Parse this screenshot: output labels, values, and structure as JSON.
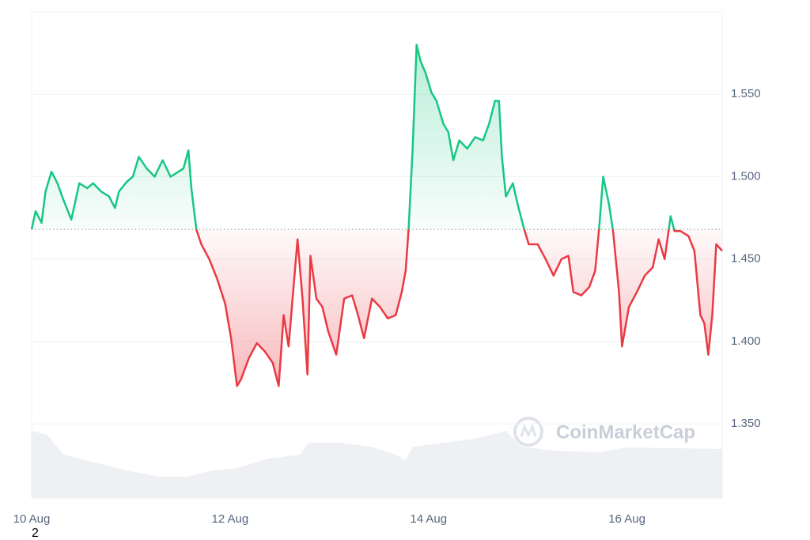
{
  "chart_data": {
    "type": "line",
    "watermark": "CoinMarketCap",
    "footnote": "2",
    "reference_line": 1.468,
    "color_up": "#16c784",
    "color_down": "#ea3943",
    "grid": true,
    "xlim": [
      0,
      6.96
    ],
    "xticks": [
      {
        "value": 0,
        "label": "10 Aug"
      },
      {
        "value": 2,
        "label": "12 Aug"
      },
      {
        "value": 4,
        "label": "14 Aug"
      },
      {
        "value": 6,
        "label": "16 Aug"
      }
    ],
    "ylim": [
      1.305,
      1.6
    ],
    "yticks": [
      {
        "value": 1.35,
        "label": "1.350"
      },
      {
        "value": 1.4,
        "label": "1.400"
      },
      {
        "value": 1.45,
        "label": "1.450"
      },
      {
        "value": 1.5,
        "label": "1.500"
      },
      {
        "value": 1.55,
        "label": "1.550"
      }
    ],
    "x": [
      0,
      0.04,
      0.1,
      0.14,
      0.2,
      0.26,
      0.32,
      0.4,
      0.48,
      0.56,
      0.62,
      0.7,
      0.78,
      0.84,
      0.88,
      0.96,
      1.02,
      1.08,
      1.16,
      1.24,
      1.32,
      1.4,
      1.48,
      1.53,
      1.58,
      1.61,
      1.66,
      1.71,
      1.79,
      1.87,
      1.95,
      2.01,
      2.07,
      2.11,
      2.19,
      2.27,
      2.35,
      2.43,
      2.49,
      2.54,
      2.59,
      2.63,
      2.68,
      2.73,
      2.78,
      2.81,
      2.87,
      2.93,
      2.99,
      3.07,
      3.15,
      3.23,
      3.29,
      3.35,
      3.43,
      3.51,
      3.59,
      3.67,
      3.73,
      3.77,
      3.8,
      3.84,
      3.88,
      3.92,
      3.97,
      4.03,
      4.08,
      4.15,
      4.2,
      4.25,
      4.31,
      4.39,
      4.47,
      4.55,
      4.61,
      4.67,
      4.71,
      4.74,
      4.78,
      4.85,
      4.9,
      4.96,
      5.01,
      5.1,
      5.18,
      5.26,
      5.34,
      5.41,
      5.46,
      5.54,
      5.62,
      5.68,
      5.72,
      5.76,
      5.82,
      5.86,
      5.92,
      5.95,
      6.02,
      6.1,
      6.18,
      6.26,
      6.32,
      6.38,
      6.44,
      6.48,
      6.54,
      6.62,
      6.68,
      6.74,
      6.78,
      6.82,
      6.86,
      6.9,
      6.96
    ],
    "values": [
      1.468,
      1.479,
      1.472,
      1.491,
      1.503,
      1.496,
      1.486,
      1.474,
      1.496,
      1.493,
      1.496,
      1.491,
      1.488,
      1.481,
      1.491,
      1.497,
      1.5,
      1.512,
      1.505,
      1.5,
      1.51,
      1.5,
      1.503,
      1.505,
      1.516,
      1.493,
      1.468,
      1.459,
      1.45,
      1.438,
      1.423,
      1.402,
      1.373,
      1.377,
      1.39,
      1.399,
      1.394,
      1.387,
      1.373,
      1.416,
      1.397,
      1.426,
      1.462,
      1.426,
      1.38,
      1.452,
      1.426,
      1.421,
      1.406,
      1.392,
      1.426,
      1.428,
      1.416,
      1.402,
      1.426,
      1.421,
      1.414,
      1.416,
      1.43,
      1.443,
      1.469,
      1.517,
      1.58,
      1.57,
      1.563,
      1.551,
      1.546,
      1.532,
      1.527,
      1.51,
      1.522,
      1.517,
      1.524,
      1.522,
      1.532,
      1.546,
      1.546,
      1.512,
      1.488,
      1.496,
      1.483,
      1.469,
      1.459,
      1.459,
      1.45,
      1.44,
      1.45,
      1.452,
      1.43,
      1.428,
      1.433,
      1.443,
      1.469,
      1.5,
      1.483,
      1.467,
      1.43,
      1.397,
      1.421,
      1.43,
      1.44,
      1.445,
      1.462,
      1.45,
      1.476,
      1.467,
      1.467,
      1.464,
      1.455,
      1.416,
      1.411,
      1.392,
      1.416,
      1.459,
      1.455
    ],
    "volume": {
      "color": "#eef0f3",
      "ylim": [
        0,
        100
      ],
      "x": [
        0,
        0.16,
        0.32,
        0.64,
        0.96,
        1.28,
        1.56,
        1.83,
        2.07,
        2.39,
        2.71,
        2.79,
        3.11,
        3.43,
        3.67,
        3.77,
        3.84,
        4.15,
        4.47,
        4.78,
        4.94,
        5.26,
        5.74,
        5.98,
        6.54,
        6.96
      ],
      "values": [
        85,
        80,
        55,
        45,
        35,
        27,
        27,
        35,
        38,
        50,
        55,
        70,
        70,
        65,
        55,
        48,
        65,
        70,
        75,
        85,
        65,
        60,
        58,
        64,
        63,
        62
      ]
    }
  }
}
